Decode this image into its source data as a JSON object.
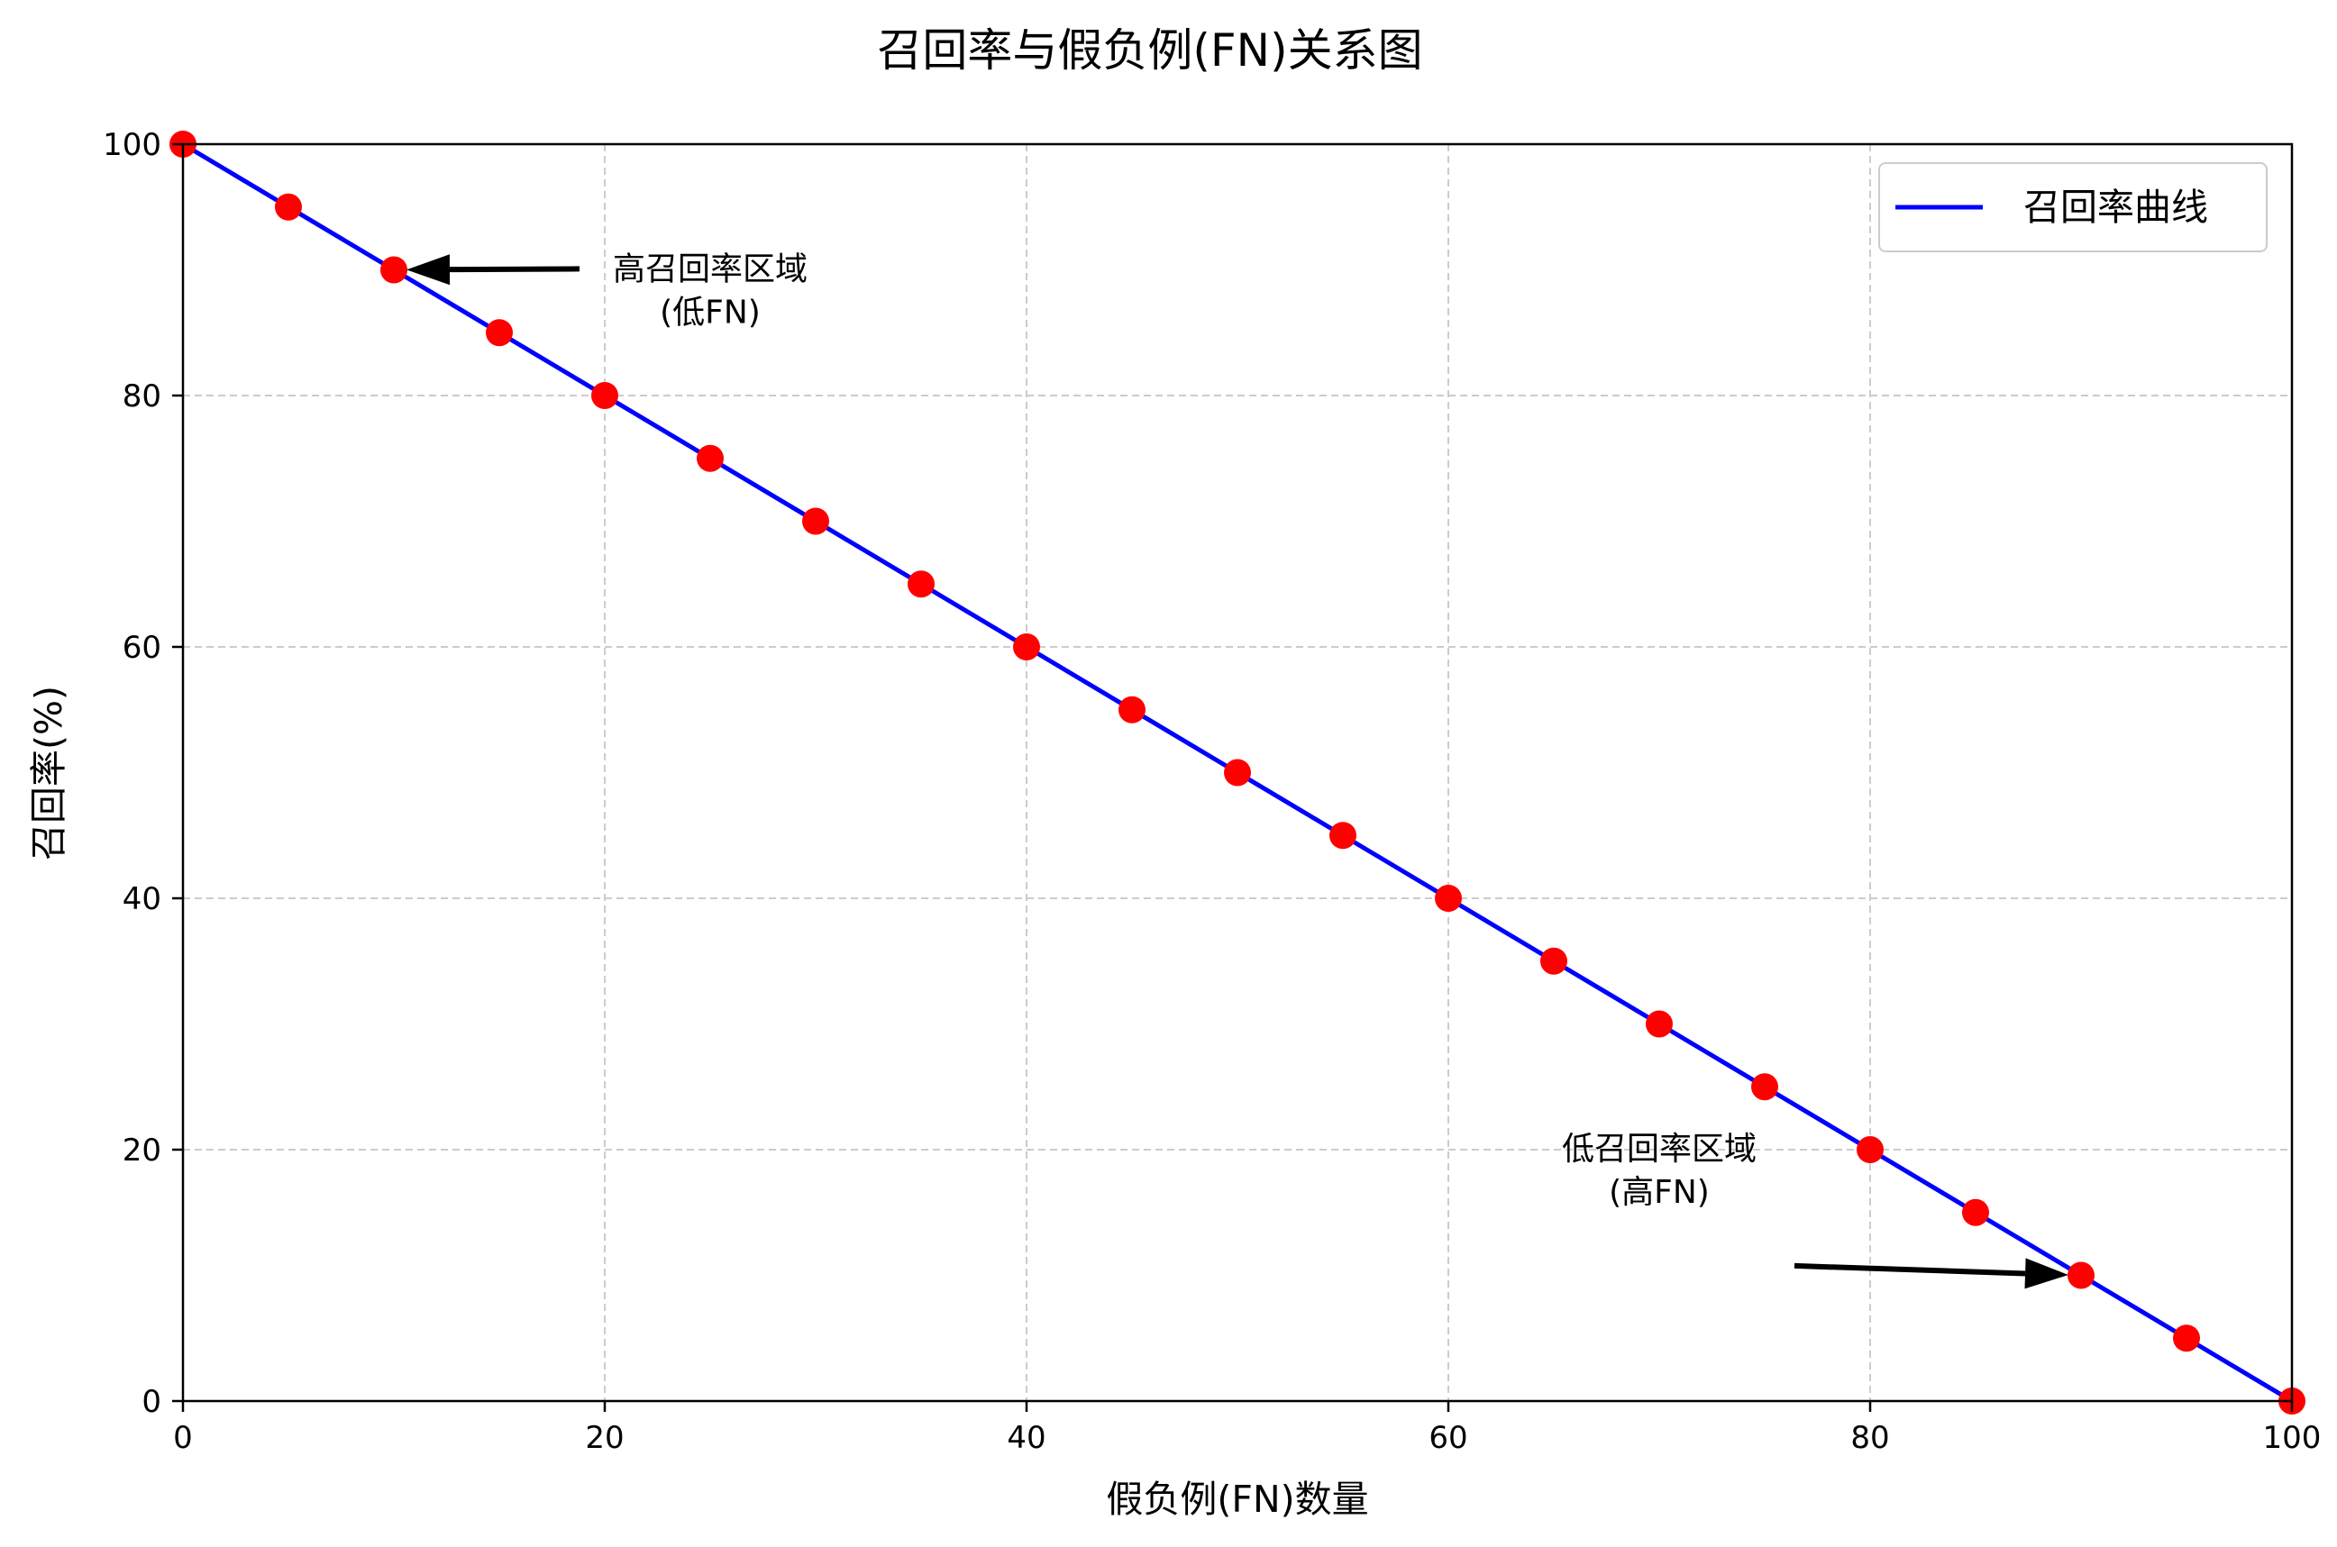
{
  "chart_data": {
    "type": "line",
    "title": "召回率与假负例(FN)关系图",
    "xlabel": "假负例(FN)数量",
    "ylabel": "召回率(%)",
    "xlim": [
      0,
      100
    ],
    "ylim": [
      0,
      100
    ],
    "xticks": [
      0,
      20,
      40,
      60,
      80,
      100
    ],
    "yticks": [
      0,
      20,
      40,
      60,
      80,
      100
    ],
    "xtick_labels": [
      "0",
      "20",
      "40",
      "60",
      "80",
      "100"
    ],
    "ytick_labels": [
      "0",
      "20",
      "40",
      "60",
      "80",
      "100"
    ],
    "grid": true,
    "legend_position": "top-right",
    "series": [
      {
        "name": "召回率曲线",
        "color": "#0000ff",
        "marker_color": "#ff0000",
        "x": [
          0,
          5,
          10,
          15,
          20,
          25,
          30,
          35,
          40,
          45,
          50,
          55,
          60,
          65,
          70,
          75,
          80,
          85,
          90,
          95,
          100
        ],
        "y": [
          100,
          95,
          90,
          85,
          80,
          75,
          70,
          65,
          60,
          55,
          50,
          45,
          40,
          35,
          30,
          25,
          20,
          15,
          10,
          5,
          0
        ]
      }
    ],
    "annotations": [
      {
        "lines": [
          "高召回率区域",
          "(低FN)"
        ],
        "point": [
          10,
          90
        ],
        "text_at": [
          25,
          88.5
        ]
      },
      {
        "lines": [
          "低召回率区域",
          "(高FN)"
        ],
        "point": [
          90,
          10
        ],
        "text_at": [
          70,
          18.5
        ]
      }
    ]
  }
}
